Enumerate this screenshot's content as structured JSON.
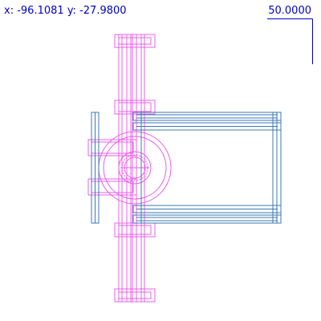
{
  "readout": {
    "x_label": "x:",
    "x_value": "-96.1081",
    "y_label": "y:",
    "y_value": "-27.9800"
  },
  "scale": {
    "label": "50.0000"
  },
  "colors": {
    "background": "#ffffff",
    "text": "#0000c8",
    "scale_bar": "#0000c8",
    "magenta_geometry": "#e860e8",
    "blue_geometry": "#3a78b0"
  }
}
